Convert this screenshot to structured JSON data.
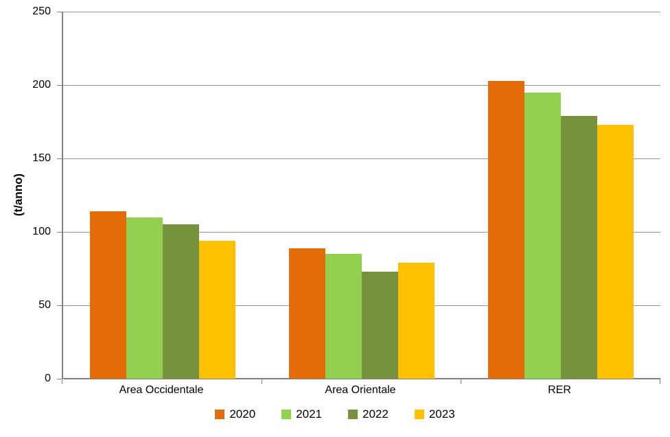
{
  "chart_data": {
    "type": "bar",
    "title": "",
    "ylabel": "(t/anno)",
    "xlabel": "",
    "categories": [
      "Area Occidentale",
      "Area Orientale",
      "RER"
    ],
    "series": [
      {
        "name": "2020",
        "color": "#E36C09",
        "values": [
          114,
          89,
          203
        ]
      },
      {
        "name": "2021",
        "color": "#92D050",
        "values": [
          110,
          85,
          195
        ]
      },
      {
        "name": "2022",
        "color": "#76923C",
        "values": [
          105,
          73,
          179
        ]
      },
      {
        "name": "2023",
        "color": "#FFC000",
        "values": [
          94,
          79,
          173
        ]
      }
    ],
    "ylim": [
      0,
      250
    ],
    "yticks": [
      0,
      50,
      100,
      150,
      200,
      250
    ],
    "grid": true,
    "legend_position": "bottom"
  },
  "colors": {
    "background": "#FFFFFF",
    "gridline": "#969696",
    "axis": "#808080",
    "text": "#000000"
  }
}
